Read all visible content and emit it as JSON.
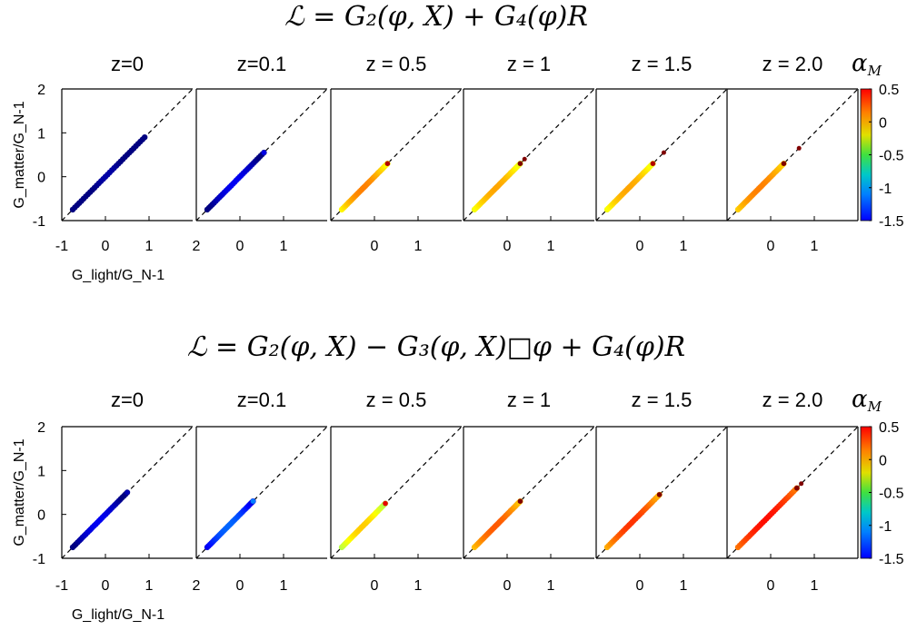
{
  "figure": {
    "rows": [
      {
        "title": "ℒ = G₂(φ, X) + G₄(φ)R",
        "colorbar": {
          "label": "α_M",
          "ticks": [
            "0.5",
            "0",
            "-0.5",
            "-1",
            "-1.5"
          ]
        }
      },
      {
        "title": "ℒ = G₂(φ, X) − G₃(φ, X)□φ + G₄(φ)R",
        "colorbar": {
          "label": "α_M",
          "ticks": [
            "0.5",
            "0",
            "-0.5",
            "-1",
            "-1.5"
          ]
        }
      }
    ],
    "panel_titles": [
      "z=0",
      "z=0.1",
      "z = 0.5",
      "z = 1",
      "z = 1.5",
      "z = 2.0"
    ],
    "ylabel": "G_matter/G_N-1",
    "xlabel": "G_light/G_N-1",
    "yticks": [
      "2",
      "1",
      "0",
      "-1"
    ],
    "xticks_first": [
      "-1",
      "0",
      "1"
    ],
    "xticks_second": [
      "2",
      "0",
      "1"
    ],
    "xticks_other": [
      "0",
      "1"
    ],
    "colors": {
      "diagonal": "#000000",
      "frame": "#000000"
    }
  },
  "chart_data": [
    {
      "type": "scatter",
      "title": "ℒ = G₂(φ, X) + G₄(φ)R",
      "xlabel": "G_light/G_N-1",
      "ylabel": "G_matter/G_N-1",
      "xlim": [
        -1,
        2
      ],
      "ylim": [
        -1,
        2
      ],
      "colorbar": {
        "label": "α_M",
        "range": [
          -1.5,
          0.5
        ],
        "colormap": "jet"
      },
      "reference_line": "y = x (dashed)",
      "panels": [
        {
          "z": "z=0",
          "x_range": [
            -0.75,
            0.9
          ],
          "alpha_M_range": [
            -1.5,
            -0.4
          ],
          "color_end": -1.5
        },
        {
          "z": "z=0.1",
          "x_range": [
            -0.75,
            0.55
          ],
          "alpha_M_range": [
            -1.2,
            -0.5
          ],
          "color_end": -1.3
        },
        {
          "z": "z = 0.5",
          "x_range": [
            -0.75,
            0.3
          ],
          "alpha_M_range": [
            -0.3,
            0.3
          ],
          "color_end": 0.4
        },
        {
          "z": "z = 1",
          "x_range": [
            -0.75,
            0.3
          ],
          "alpha_M_range": [
            -0.3,
            0.2
          ],
          "color_end": 0.5,
          "outlier_x": 0.4
        },
        {
          "z": "z = 1.5",
          "x_range": [
            -0.75,
            0.3
          ],
          "alpha_M_range": [
            -0.3,
            0.2
          ],
          "color_end": 0.4,
          "outlier_x": 0.55
        },
        {
          "z": "z = 2.0",
          "x_range": [
            -0.75,
            0.3
          ],
          "alpha_M_range": [
            -0.2,
            0.2
          ],
          "color_end": 0.5,
          "outlier_x": 0.65
        }
      ]
    },
    {
      "type": "scatter",
      "title": "ℒ = G₂(φ, X) − G₃(φ, X)□φ + G₄(φ)R",
      "xlabel": "G_light/G_N-1",
      "ylabel": "G_matter/G_N-1",
      "xlim": [
        -1,
        2
      ],
      "ylim": [
        -1,
        2
      ],
      "colorbar": {
        "label": "α_M",
        "range": [
          -1.5,
          0.5
        ],
        "colormap": "jet"
      },
      "reference_line": "y = x (dashed)",
      "panels": [
        {
          "z": "z=0",
          "x_range": [
            -0.75,
            0.5
          ],
          "alpha_M_range": [
            -1.2,
            -0.5
          ],
          "color_end": -1.4
        },
        {
          "z": "z=0.1",
          "x_range": [
            -0.75,
            0.3
          ],
          "alpha_M_range": [
            -1.0,
            -0.4
          ],
          "color_end": -1.0
        },
        {
          "z": "z = 0.5",
          "x_range": [
            -0.75,
            0.25
          ],
          "alpha_M_range": [
            -0.4,
            0.2
          ],
          "color_end": 0.3
        },
        {
          "z": "z = 1",
          "x_range": [
            -0.75,
            0.3
          ],
          "alpha_M_range": [
            -0.2,
            0.3
          ],
          "color_end": 0.5
        },
        {
          "z": "z = 1.5",
          "x_range": [
            -0.75,
            0.45
          ],
          "alpha_M_range": [
            -0.2,
            0.4
          ],
          "color_end": 0.5
        },
        {
          "z": "z = 2.0",
          "x_range": [
            -0.75,
            0.6
          ],
          "alpha_M_range": [
            -0.1,
            0.4
          ],
          "color_end": 0.5,
          "outlier_x": 0.7
        }
      ]
    }
  ]
}
